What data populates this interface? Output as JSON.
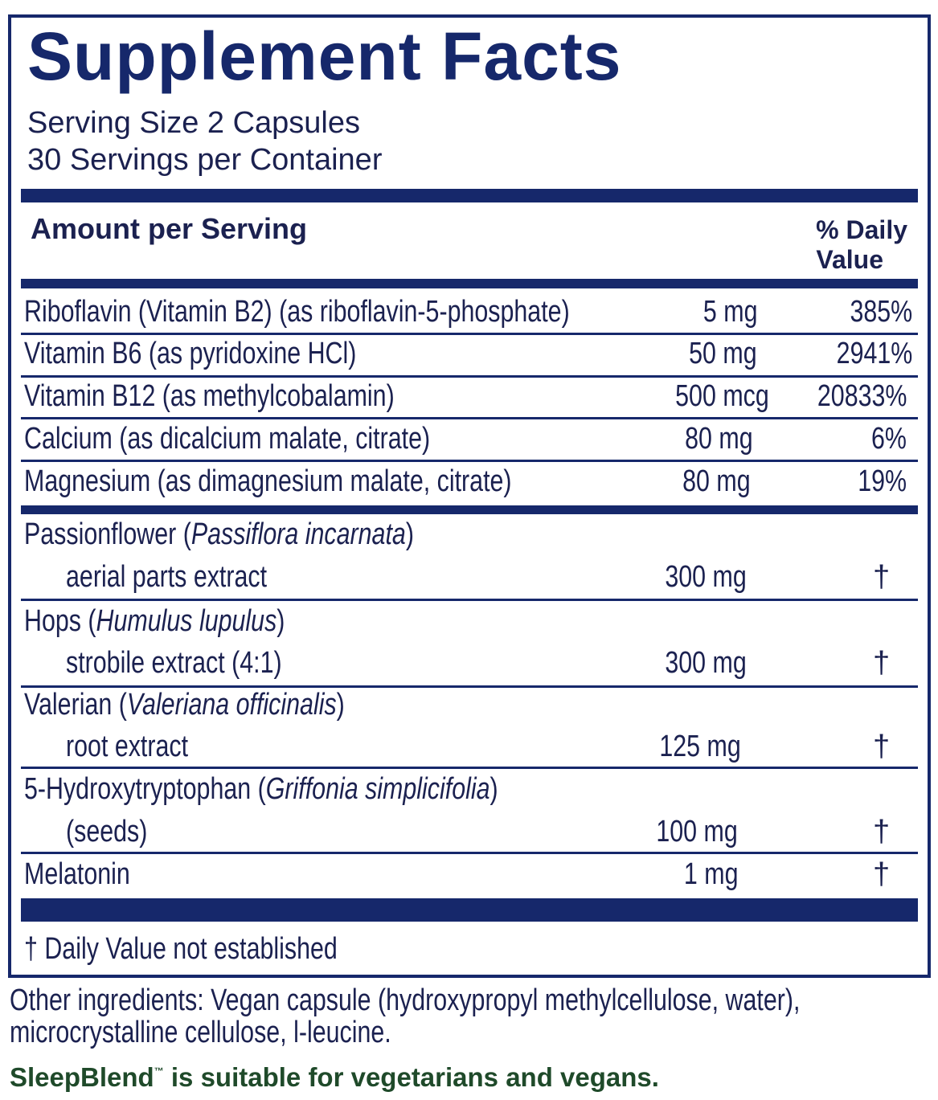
{
  "title": "Supplement Facts",
  "serving_size": "Serving Size 2 Capsules",
  "servings_per_container": "30 Servings per Container",
  "header": {
    "amount": "Amount per Serving",
    "dv_line1": "% Daily",
    "dv_line2": "Value"
  },
  "nutrients": [
    {
      "name": "Riboflavin (Vitamin B2) (as riboflavin-5-phosphate)",
      "amount": "5 mg",
      "dv": "385%"
    },
    {
      "name": "Vitamin B6 (as pyridoxine HCl)",
      "amount": "50 mg",
      "dv": "2941%"
    },
    {
      "name": "Vitamin B12 (as methylcobalamin)",
      "amount": "500 mcg",
      "dv": "20833%"
    },
    {
      "name": "Calcium (as dicalcium malate, citrate)",
      "amount": "80 mg",
      "dv": "6%"
    },
    {
      "name": "Magnesium (as dimagnesium malate, citrate)",
      "amount": "80 mg",
      "dv": "19%"
    }
  ],
  "botanicals": [
    {
      "name": "Passionflower",
      "latin": "Passiflora incarnata",
      "part": "aerial parts extract",
      "amount": "300 mg",
      "dv": "†"
    },
    {
      "name": "Hops",
      "latin": "Humulus lupulus",
      "part": "strobile extract (4:1)",
      "amount": "300 mg",
      "dv": "†"
    },
    {
      "name": "Valerian",
      "latin": "Valeriana officinalis",
      "part": "root extract",
      "amount": "125 mg",
      "dv": "†"
    },
    {
      "name": "5-Hydroxytryptophan",
      "latin": "Griffonia simplicifolia",
      "part": "(seeds)",
      "amount": "100 mg",
      "dv": "†"
    },
    {
      "name": "Melatonin",
      "amount": "1 mg",
      "dv": "†"
    }
  ],
  "footnote": "† Daily Value not established",
  "other_ingredients_1": "Other ingredients: Vegan capsule (hydroxypropyl methylcellulose, water),",
  "other_ingredients_2": "microcrystalline cellulose, l-leucine.",
  "suitability": {
    "brand": "SleepBlend",
    "tm": "™",
    "text": " is suitable for vegetarians and vegans."
  },
  "colors": {
    "navy": "#16286b",
    "text": "#1b2150",
    "green": "#1f4a2a"
  }
}
